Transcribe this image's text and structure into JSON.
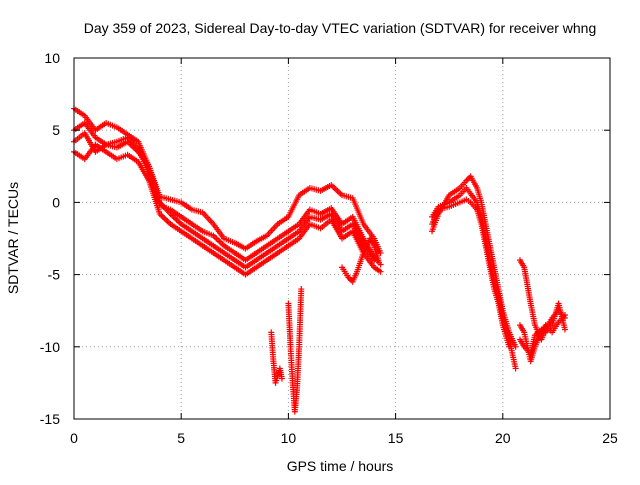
{
  "chart_data": {
    "type": "scatter",
    "title": "Day 359 of 2023, Sidereal Day-to-day VTEC variation (SDTVAR) for receiver whng",
    "xlabel": "GPS time / hours",
    "ylabel": "SDTVAR / TECUs",
    "xlim": [
      0,
      25
    ],
    "ylim": [
      -15,
      10
    ],
    "x_ticks": [
      0,
      5,
      10,
      15,
      20,
      25
    ],
    "y_ticks": [
      -15,
      -10,
      -5,
      0,
      5,
      10
    ],
    "grid": true,
    "marker": "+",
    "series": [
      {
        "name": "SDTVAR",
        "color": "#ff0000",
        "segments": [
          {
            "x": [
              0,
              0.5,
              1,
              1.5,
              2,
              2.5,
              3,
              3.5,
              4,
              4.5,
              5,
              5.5,
              6,
              6.5,
              7,
              7.5,
              8,
              8.5,
              9,
              9.5,
              10,
              10.5,
              11,
              11.5,
              12,
              12.5,
              13,
              13.5,
              14,
              14.3
            ],
            "y": [
              6.5,
              6,
              5,
              5.5,
              5.2,
              4.7,
              4.2,
              2.5,
              0.4,
              0.2,
              0,
              -0.5,
              -0.7,
              -1.5,
              -2.5,
              -2.8,
              -3.2,
              -2.7,
              -2.3,
              -1.5,
              -1,
              0.5,
              1,
              0.8,
              1.2,
              0.5,
              0.3,
              -1.5,
              -2.5,
              -3.5
            ]
          },
          {
            "x": [
              0,
              0.5,
              1,
              1.5,
              2,
              2.5,
              3,
              3.5,
              4,
              4.5,
              5,
              5.5,
              6,
              6.5,
              7,
              7.5,
              8,
              8.5,
              9,
              9.5,
              10,
              10.5,
              11,
              11.5,
              12,
              12.5,
              13,
              13.5,
              14,
              14.3
            ],
            "y": [
              5,
              5.5,
              4.5,
              4,
              4.2,
              4.5,
              3.7,
              2,
              -0.2,
              -0.5,
              -1,
              -1.5,
              -2,
              -2.3,
              -3,
              -3.5,
              -4,
              -3.5,
              -3,
              -2.5,
              -2,
              -1.5,
              -0.5,
              -0.8,
              -0.4,
              -1.5,
              -1,
              -2.5,
              -3.8,
              -4.3
            ]
          },
          {
            "x": [
              0,
              0.5,
              1,
              1.5,
              2,
              2.5,
              3,
              3.5,
              4,
              4.5,
              5,
              5.5,
              6,
              6.5,
              7,
              7.5,
              8,
              8.5,
              9,
              9.5,
              10,
              10.5,
              11,
              11.5,
              12,
              12.5,
              13,
              13.5,
              14,
              14.3
            ],
            "y": [
              3.5,
              3,
              4,
              3.5,
              3,
              3.3,
              2.8,
              1.5,
              -0.8,
              -1.5,
              -2,
              -2.5,
              -3,
              -3.5,
              -4,
              -4.5,
              -5,
              -4.5,
              -4,
              -3.5,
              -3,
              -2.5,
              -1.5,
              -1.8,
              -1.2,
              -2.5,
              -2,
              -3.5,
              -4.5,
              -4.8
            ]
          },
          {
            "x": [
              0,
              0.5,
              1,
              1.5,
              2,
              2.5,
              3,
              3.5,
              4,
              4.5,
              5,
              5.5,
              6,
              6.5,
              7,
              7.5,
              8,
              8.5,
              9,
              9.5,
              10,
              10.5,
              11,
              11.5,
              12,
              12.5,
              13,
              13.5,
              14
            ],
            "y": [
              4.2,
              4.8,
              3.5,
              4,
              3.8,
              4.2,
              3.5,
              2.5,
              0,
              -0.8,
              -1.5,
              -2,
              -2.5,
              -3,
              -3.5,
              -4,
              -4.5,
              -4,
              -3.5,
              -3,
              -2.5,
              -2,
              -1,
              -1.2,
              -0.8,
              -2,
              -1.5,
              -3,
              -4
            ]
          },
          {
            "x": [
              9.2,
              9.3,
              9.4,
              9.5,
              9.6,
              9.7
            ],
            "y": [
              -9,
              -11,
              -12.5,
              -12,
              -11.5,
              -12.2
            ]
          },
          {
            "x": [
              10,
              10.1,
              10.2,
              10.3,
              10.4,
              10.5,
              10.6
            ],
            "y": [
              -7,
              -10,
              -12.5,
              -14.5,
              -13,
              -10,
              -6
            ]
          },
          {
            "x": [
              12.5,
              12.8,
              13,
              13.2,
              13.5,
              13.8,
              14,
              14.2
            ],
            "y": [
              -4.5,
              -5.2,
              -5.5,
              -4.8,
              -3.5,
              -2.5,
              -3,
              -4
            ]
          },
          {
            "x": [
              16.7,
              17,
              17.5,
              18,
              18.3,
              18.5,
              18.8,
              19,
              19.2,
              19.4,
              19.6,
              19.8,
              20,
              20.3,
              20.6
            ],
            "y": [
              -2,
              -0.8,
              0.5,
              1,
              1.5,
              1.8,
              1,
              0,
              -1.5,
              -3,
              -4.5,
              -6,
              -7.5,
              -9,
              -10
            ]
          },
          {
            "x": [
              16.7,
              17,
              17.5,
              18,
              18.3,
              18.5,
              18.8,
              19,
              19.2,
              19.4,
              19.6,
              19.8,
              20,
              20.3,
              20.6
            ],
            "y": [
              -1,
              -0.3,
              0,
              0.5,
              1,
              0.6,
              0,
              -1,
              -2.5,
              -4,
              -5.5,
              -6.5,
              -8,
              -9.5,
              -11.5
            ]
          },
          {
            "x": [
              16.7,
              17,
              17.5,
              18,
              18.3,
              18.5,
              18.8,
              19,
              19.2,
              19.4,
              19.6,
              19.8,
              20,
              20.3
            ],
            "y": [
              -1.5,
              -0.5,
              -0.3,
              0,
              0.2,
              0,
              -0.5,
              -1.5,
              -3,
              -4.5,
              -6,
              -7,
              -8.5,
              -10
            ]
          },
          {
            "x": [
              20.8,
              21,
              21.3,
              21.5,
              21.8,
              22,
              22.3,
              22.6,
              22.9
            ],
            "y": [
              -4,
              -4.5,
              -7,
              -8.5,
              -9.5,
              -8.7,
              -8,
              -7.5,
              -8
            ]
          },
          {
            "x": [
              20.8,
              21,
              21.3,
              21.5,
              21.8,
              22,
              22.3,
              22.6,
              22.9
            ],
            "y": [
              -8.5,
              -9,
              -11,
              -10,
              -9,
              -8.5,
              -9,
              -8.3,
              -7.8
            ]
          },
          {
            "x": [
              20.8,
              21,
              21.3,
              21.5,
              21.8,
              22,
              22.3,
              22.6,
              22.9
            ],
            "y": [
              -9.5,
              -10,
              -10.5,
              -9.2,
              -8.8,
              -9,
              -8.5,
              -7,
              -8.8
            ]
          }
        ]
      }
    ]
  }
}
